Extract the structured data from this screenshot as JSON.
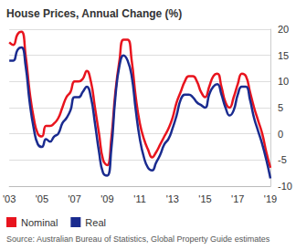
{
  "chart_data": {
    "type": "line",
    "title": "House Prices, Annual Change (%)",
    "annotations": [
      "Source: Australian Bureau of Statistics, Global Property Guide estimates"
    ],
    "categories": [
      "'03",
      null,
      null,
      null,
      null,
      null,
      null,
      null,
      "'05",
      null,
      null,
      null,
      null,
      null,
      null,
      null,
      "'07",
      null,
      null,
      null,
      null,
      null,
      null,
      null,
      "'09",
      null,
      null,
      null,
      null,
      null,
      null,
      null,
      "'11",
      null,
      null,
      null,
      null,
      null,
      null,
      null,
      "'13",
      null,
      null,
      null,
      null,
      null,
      null,
      null,
      "'15",
      null,
      null,
      null,
      null,
      null,
      null,
      null,
      "'17",
      null,
      null,
      null,
      null,
      null,
      null,
      null,
      "'19"
    ],
    "series": [
      {
        "name": "Nominal",
        "color": "#e8141e",
        "values": [
          17.5,
          17,
          19,
          19.5,
          15,
          8,
          3,
          0,
          -0.5,
          1.5,
          1.5,
          2,
          3,
          5,
          7,
          8,
          10,
          10,
          10.5,
          12,
          10,
          5,
          0,
          -5,
          -6,
          -1,
          8,
          14,
          18,
          18,
          14,
          7,
          2,
          -1,
          -3,
          -4.5,
          -3.5,
          -2,
          -0.5,
          1,
          3,
          6,
          8,
          10,
          11,
          11,
          10,
          8,
          7,
          9,
          11,
          11.5,
          9,
          6,
          5,
          7,
          9.5,
          11.5,
          11,
          8,
          5,
          2.5,
          0,
          -3.5,
          -6.5
        ]
      },
      {
        "name": "Real",
        "color": "#1a2b8f",
        "values": [
          14,
          14,
          16,
          16.5,
          13,
          6,
          1,
          -2,
          -2.5,
          -1,
          -1.5,
          -0.5,
          0,
          2,
          3,
          4.5,
          7,
          7,
          8,
          9,
          7,
          2,
          -3.5,
          -7.5,
          -8,
          -3,
          7,
          13,
          15,
          14,
          11,
          4.5,
          -1,
          -4.5,
          -6.5,
          -7,
          -5.5,
          -4,
          -2,
          -1,
          1,
          3.5,
          6.5,
          7.5,
          7.5,
          7,
          6,
          5.5,
          5,
          7.5,
          9,
          9.5,
          7.5,
          5,
          3.5,
          4.5,
          7.5,
          9,
          9,
          6.5,
          3,
          0.5,
          -2,
          -5,
          -8.5
        ]
      }
    ],
    "ylim": [
      -10,
      20
    ],
    "yticks": [
      -10,
      -5,
      0,
      5,
      10,
      15,
      20
    ],
    "grid": true,
    "legend": "bottom-left"
  }
}
